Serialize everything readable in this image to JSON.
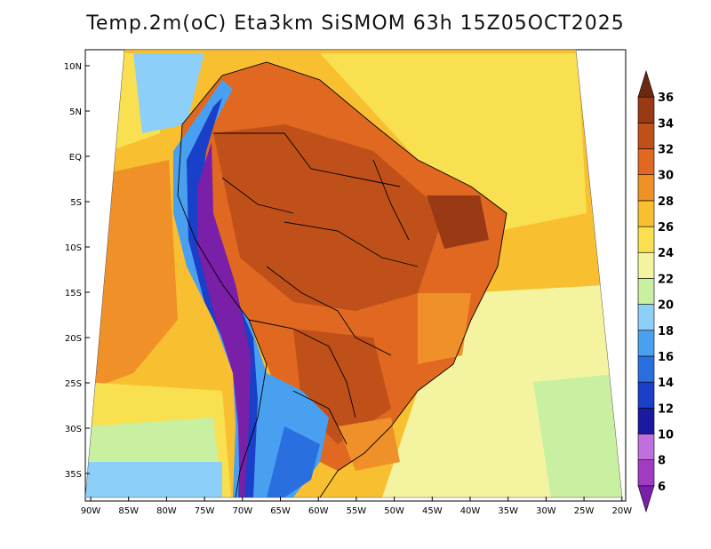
{
  "title": "Temp.2m(oC) Eta3km SiSMOM 63h 15Z05OCT2025",
  "map": {
    "variable": "2m temperature",
    "units": "oC",
    "lon_ticks": [
      "90W",
      "85W",
      "80W",
      "75W",
      "70W",
      "65W",
      "60W",
      "55W",
      "50W",
      "45W",
      "40W",
      "35W",
      "30W",
      "25W",
      "20W"
    ],
    "lat_ticks": [
      "10N",
      "5N",
      "EQ",
      "5S",
      "10S",
      "15S",
      "20S",
      "25S",
      "30S",
      "35S"
    ]
  },
  "colorbar": {
    "labels": [
      "6",
      "8",
      "10",
      "12",
      "14",
      "16",
      "18",
      "20",
      "22",
      "24",
      "26",
      "28",
      "30",
      "32",
      "34",
      "36"
    ],
    "colors": [
      "#7a1fa8",
      "#a23bc2",
      "#c070dd",
      "#1a1aa0",
      "#1a3fc8",
      "#2a6fe0",
      "#4aa0f0",
      "#8ccff8",
      "#c8f0a0",
      "#f4f4a0",
      "#f8e050",
      "#f8c030",
      "#f09028",
      "#e06820",
      "#c0501a",
      "#9a3a14",
      "#6a2a10"
    ]
  }
}
